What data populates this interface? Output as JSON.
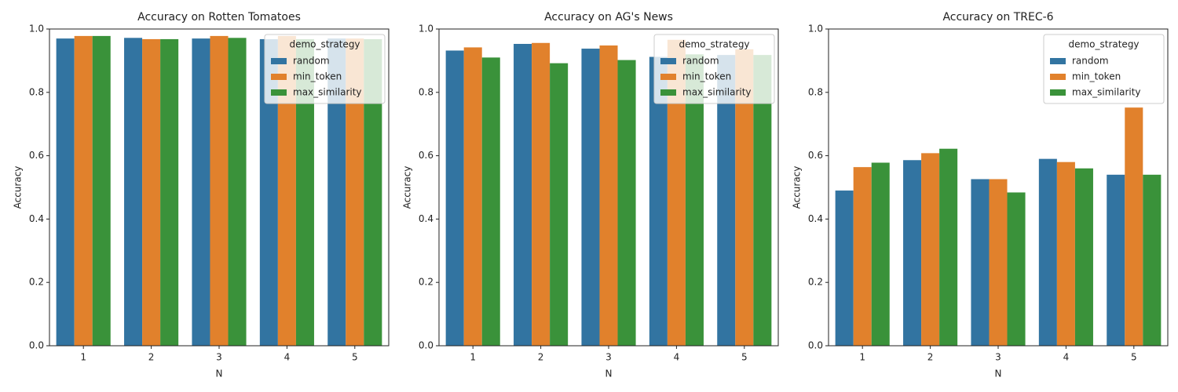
{
  "chart_data": [
    {
      "type": "bar",
      "title": "Accuracy on Rotten Tomatoes",
      "x_label": "N",
      "y_label": "Accuracy",
      "categories": [
        "1",
        "2",
        "3",
        "4",
        "5"
      ],
      "series": [
        {
          "name": "random",
          "color": "#3274a1",
          "values": [
            0.97,
            0.972,
            0.97,
            0.968,
            0.97
          ]
        },
        {
          "name": "min_token",
          "color": "#e1812c",
          "values": [
            0.978,
            0.968,
            0.978,
            0.978,
            0.97
          ]
        },
        {
          "name": "max_similarity",
          "color": "#3a923a",
          "values": [
            0.978,
            0.968,
            0.972,
            0.968,
            0.968
          ]
        }
      ],
      "ylim": [
        0,
        1
      ],
      "yticks": [
        {
          "value": 0,
          "label": "0.0"
        },
        0.2,
        0.4,
        0.6,
        0.8,
        {
          "value": 1,
          "label": "1.0"
        }
      ],
      "legend_title": "demo_strategy",
      "legend_position": "upper right"
    },
    {
      "type": "bar",
      "title": "Accuracy on AG's News",
      "x_label": "N",
      "y_label": "Accuracy",
      "categories": [
        "1",
        "2",
        "3",
        "4",
        "5"
      ],
      "series": [
        {
          "name": "random",
          "color": "#3274a1",
          "values": [
            0.932,
            0.953,
            0.938,
            0.912,
            0.918
          ]
        },
        {
          "name": "min_token",
          "color": "#e1812c",
          "values": [
            0.942,
            0.956,
            0.948,
            0.966,
            0.936
          ]
        },
        {
          "name": "max_similarity",
          "color": "#3a923a",
          "values": [
            0.91,
            0.892,
            0.902,
            0.92,
            0.918
          ]
        }
      ],
      "ylim": [
        0,
        1
      ],
      "yticks": [
        {
          "value": 0,
          "label": "0.0"
        },
        0.2,
        0.4,
        0.6,
        0.8,
        {
          "value": 1,
          "label": "1.0"
        }
      ],
      "legend_title": "demo_strategy",
      "legend_position": "upper right"
    },
    {
      "type": "bar",
      "title": "Accuracy on TREC-6",
      "x_label": "N",
      "y_label": "Accuracy",
      "categories": [
        "1",
        "2",
        "3",
        "4",
        "5"
      ],
      "series": [
        {
          "name": "random",
          "color": "#3274a1",
          "values": [
            0.49,
            0.586,
            0.526,
            0.59,
            0.54
          ]
        },
        {
          "name": "min_token",
          "color": "#e1812c",
          "values": [
            0.564,
            0.608,
            0.526,
            0.58,
            0.752
          ]
        },
        {
          "name": "max_similarity",
          "color": "#3a923a",
          "values": [
            0.578,
            0.622,
            0.484,
            0.56,
            0.54
          ]
        }
      ],
      "ylim": [
        0,
        1
      ],
      "yticks": [
        {
          "value": 0,
          "label": "0.0"
        },
        0.2,
        0.4,
        0.6,
        0.8,
        {
          "value": 1,
          "label": "1.0"
        }
      ],
      "legend_title": "demo_strategy",
      "legend_position": "upper right"
    }
  ]
}
